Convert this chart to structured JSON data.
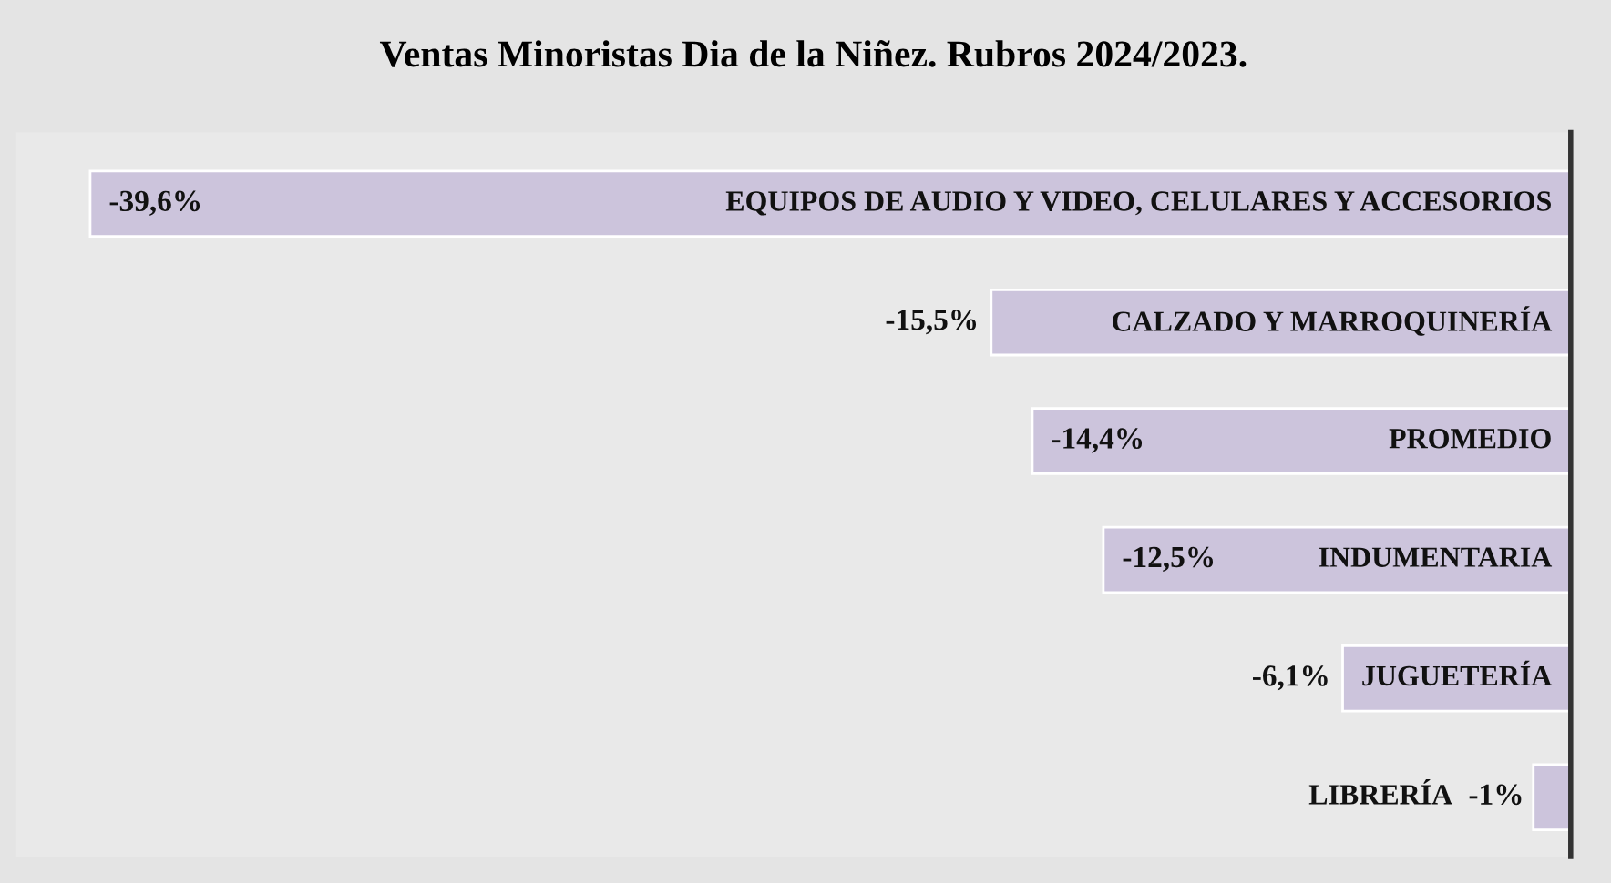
{
  "chart_data": {
    "type": "bar",
    "orientation": "horizontal",
    "title": "Ventas Minoristas Dia de la Niñez. Rubros 2024/2023.",
    "categories": [
      "EQUIPOS DE AUDIO Y VIDEO, CELULARES Y ACCESORIOS",
      "CALZADO Y MARROQUINERÍA",
      "PROMEDIO",
      "INDUMENTARIA",
      "JUGUETERÍA",
      "LIBRERÍA"
    ],
    "values": [
      -39.6,
      -15.5,
      -14.4,
      -12.5,
      -6.1,
      -1
    ],
    "value_labels": [
      "-39,6%",
      "-15,5%",
      "-14,4%",
      "-12,5%",
      "-6,1%",
      "-1%"
    ],
    "color": "#ccc4dc"
  }
}
